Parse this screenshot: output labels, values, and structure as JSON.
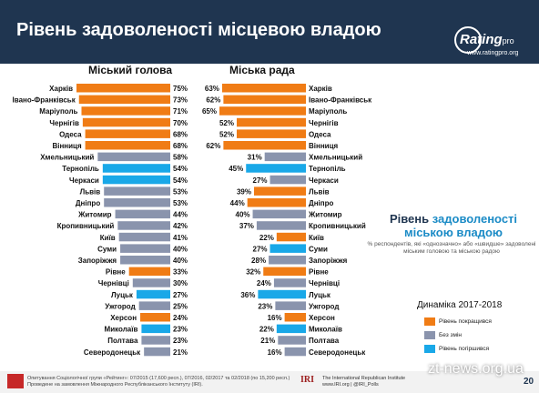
{
  "header": {
    "title": "Рівень задоволеності місцевою владою",
    "logo_main": "Rating",
    "logo_suffix": "pro",
    "site": "www.ratingpro.org"
  },
  "colors": {
    "header_bg": "#1f3550",
    "content_bg": "#ffffff",
    "improved": "#f07c15",
    "no_change": "#8a94ad",
    "worsened": "#19a8e8"
  },
  "side_panel": {
    "title_part1": "Рівень ",
    "title_part2": "задоволеності",
    "title_part3": "міською владою",
    "note": "% респондентів, які «однозначно» або «швидше» задоволені міським головою та міською радою"
  },
  "legend": {
    "title": "Динаміка 2017-2018",
    "items": [
      {
        "label": "Рівень покращився",
        "color": "#f07c15"
      },
      {
        "label": "Без змін",
        "color": "#8a94ad"
      },
      {
        "label": "Рівень погіршився",
        "color": "#19a8e8"
      }
    ]
  },
  "footer": {
    "note_line1": "Опитування Соціологічної групи «Рейтинг»: 07/2015 (17,600 респ.), 07/2016, 02/2017 та 02/2018 (по 15,200 респ.)",
    "note_line2": "Проведене на замовлення Міжнародного Республіканського Інституту (IRI).",
    "iri_logo": "IRI",
    "iri_line1": "The International Republican Institute",
    "iri_line2": "www.IRI.org | @IRI_Polls",
    "page_number": "20"
  },
  "watermark": "zt-news.org.ua",
  "chart_data": [
    {
      "type": "bar",
      "orientation": "horizontal",
      "title": "Міський голова",
      "value_suffix": "%",
      "categories": [
        "Харків",
        "Івано-Франківськ",
        "Маріуполь",
        "Чернігів",
        "Одеса",
        "Вінниця",
        "Хмельницький",
        "Тернопіль",
        "Черкаси",
        "Львів",
        "Дніпро",
        "Житомир",
        "Кропивницький",
        "Київ",
        "Суми",
        "Запоріжжя",
        "Рівне",
        "Чернівці",
        "Луцьк",
        "Ужгород",
        "Херсон",
        "Миколаїв",
        "Полтава",
        "Северодонецьк"
      ],
      "values": [
        75,
        73,
        71,
        70,
        68,
        68,
        58,
        54,
        54,
        53,
        53,
        44,
        42,
        41,
        40,
        40,
        33,
        30,
        27,
        25,
        24,
        23,
        23,
        21
      ],
      "dynamics": [
        "improved",
        "improved",
        "improved",
        "improved",
        "improved",
        "improved",
        "no_change",
        "worsened",
        "worsened",
        "no_change",
        "no_change",
        "no_change",
        "no_change",
        "no_change",
        "no_change",
        "no_change",
        "improved",
        "no_change",
        "worsened",
        "no_change",
        "improved",
        "worsened",
        "no_change",
        "no_change"
      ],
      "xlim": [
        0,
        75
      ]
    },
    {
      "type": "bar",
      "orientation": "horizontal",
      "title": "Міська рада",
      "value_suffix": "%",
      "categories": [
        "Харків",
        "Івано-Франківськ",
        "Маріуполь",
        "Чернігів",
        "Одеса",
        "Вінниця",
        "Хмельницький",
        "Тернопіль",
        "Черкаси",
        "Львів",
        "Дніпро",
        "Житомир",
        "Кропивницький",
        "Київ",
        "Суми",
        "Запоріжжя",
        "Рівне",
        "Чернівці",
        "Луцьк",
        "Ужгород",
        "Херсон",
        "Миколаїв",
        "Полтава",
        "Северодонецьк"
      ],
      "values": [
        63,
        62,
        65,
        52,
        52,
        62,
        31,
        45,
        27,
        39,
        44,
        40,
        37,
        22,
        27,
        28,
        32,
        24,
        36,
        23,
        16,
        22,
        21,
        16
      ],
      "dynamics": [
        "improved",
        "improved",
        "improved",
        "improved",
        "improved",
        "improved",
        "no_change",
        "worsened",
        "no_change",
        "improved",
        "improved",
        "no_change",
        "no_change",
        "improved",
        "worsened",
        "no_change",
        "improved",
        "no_change",
        "worsened",
        "no_change",
        "improved",
        "worsened",
        "no_change",
        "no_change"
      ],
      "xlim": [
        0,
        65
      ]
    }
  ]
}
